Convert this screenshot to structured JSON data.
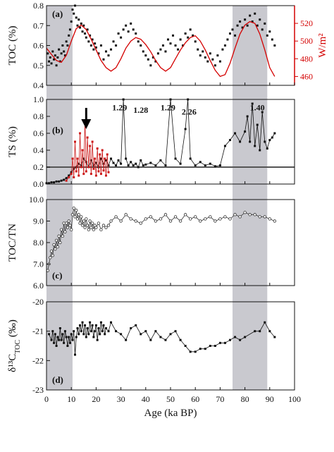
{
  "chart_data": {
    "type": "scatter",
    "x_axis": {
      "label": "Age (ka BP)",
      "range": [
        0,
        100
      ],
      "ticks": [
        "0",
        "10",
        "20",
        "30",
        "40",
        "50",
        "60",
        "70",
        "80",
        "90",
        "100"
      ]
    },
    "shaded_intervals": [
      [
        0,
        10.5
      ],
      [
        75,
        89
      ]
    ],
    "panels": [
      {
        "id": "a",
        "label": "(a)",
        "ylabel": "TOC (%)",
        "ylim": [
          0.4,
          0.8
        ],
        "yticks": [
          "0.4",
          "0.5",
          "0.6",
          "0.7",
          "0.8"
        ],
        "right_axis": {
          "label": "W/m²",
          "ylim": [
            450,
            540
          ],
          "ticks": [
            "460",
            "480",
            "500",
            "520"
          ],
          "color": "#d40000"
        },
        "series": [
          {
            "style": "points",
            "color": "#111111",
            "x": [
              0.5,
              1,
              1.5,
              2,
              2.5,
              3,
              3.5,
              4,
              4.5,
              5,
              5.5,
              6,
              6.5,
              7,
              7.5,
              8,
              8.5,
              9,
              9.5,
              10,
              10.5,
              11,
              11.5,
              12,
              12.5,
              13,
              13.5,
              14,
              14.5,
              15,
              15.5,
              16,
              16.5,
              17,
              17.5,
              18,
              18.5,
              19,
              19.5,
              20,
              21,
              22,
              23,
              24,
              25,
              26,
              27,
              28,
              29,
              30,
              31,
              32,
              33,
              34,
              35,
              36,
              37,
              38,
              39,
              40,
              41,
              42,
              43,
              44,
              45,
              46,
              47,
              48,
              49,
              50,
              51,
              52,
              53,
              54,
              55,
              56,
              57,
              58,
              59,
              60,
              61,
              62,
              63,
              64,
              65,
              66,
              67,
              68,
              69,
              70,
              71,
              72,
              73,
              74,
              75,
              76,
              77,
              78,
              79,
              80,
              81,
              82,
              83,
              84,
              85,
              86,
              87,
              88,
              89,
              90,
              91,
              92
            ],
            "y": [
              0.56,
              0.52,
              0.54,
              0.51,
              0.57,
              0.53,
              0.55,
              0.5,
              0.54,
              0.58,
              0.52,
              0.56,
              0.6,
              0.57,
              0.55,
              0.62,
              0.6,
              0.65,
              0.68,
              0.72,
              0.78,
              0.76,
              0.8,
              0.74,
              0.7,
              0.73,
              0.69,
              0.71,
              0.67,
              0.7,
              0.66,
              0.64,
              0.68,
              0.62,
              0.65,
              0.6,
              0.63,
              0.58,
              0.61,
              0.59,
              0.56,
              0.6,
              0.53,
              0.57,
              0.55,
              0.58,
              0.62,
              0.6,
              0.66,
              0.64,
              0.68,
              0.7,
              0.67,
              0.71,
              0.68,
              0.66,
              0.62,
              0.6,
              0.57,
              0.55,
              0.53,
              0.5,
              0.54,
              0.52,
              0.56,
              0.58,
              0.6,
              0.57,
              0.63,
              0.61,
              0.65,
              0.6,
              0.58,
              0.63,
              0.6,
              0.66,
              0.64,
              0.68,
              0.65,
              0.62,
              0.58,
              0.55,
              0.57,
              0.54,
              0.52,
              0.56,
              0.53,
              0.5,
              0.55,
              0.52,
              0.58,
              0.6,
              0.63,
              0.66,
              0.68,
              0.65,
              0.7,
              0.72,
              0.69,
              0.73,
              0.7,
              0.75,
              0.72,
              0.76,
              0.7,
              0.73,
              0.68,
              0.71,
              0.65,
              0.67,
              0.63,
              0.6
            ]
          },
          {
            "style": "line",
            "color": "#d40000",
            "axis": "right",
            "x": [
              0,
              2,
              4,
              6,
              8,
              10,
              12,
              14,
              16,
              18,
              20,
              22,
              24,
              26,
              28,
              30,
              32,
              34,
              36,
              38,
              40,
              42,
              44,
              46,
              48,
              50,
              52,
              54,
              56,
              58,
              60,
              62,
              64,
              66,
              68,
              70,
              72,
              74,
              76,
              78,
              80,
              82,
              84,
              86,
              88,
              90,
              92
            ],
            "y": [
              492,
              485,
              478,
              476,
              484,
              500,
              514,
              518,
              513,
              502,
              490,
              478,
              470,
              466,
              470,
              480,
              492,
              500,
              504,
              502,
              496,
              488,
              478,
              470,
              466,
              470,
              480,
              490,
              498,
              504,
              506,
              500,
              490,
              478,
              467,
              460,
              462,
              475,
              492,
              508,
              518,
              522,
              520,
              508,
              490,
              470,
              460
            ]
          }
        ]
      },
      {
        "id": "b",
        "label": "(b)",
        "ylabel": "TS (%)",
        "ylim": [
          0,
          1.0
        ],
        "yticks": [
          "0.0",
          "0.2",
          "0.4",
          "0.6",
          "0.8",
          "1.0"
        ],
        "reference_line": 0.2,
        "arrow_x": 16,
        "annotations": [
          {
            "text": "1.29",
            "x": 26.5,
            "y": 0.87
          },
          {
            "text": "1.28",
            "x": 35,
            "y": 0.84
          },
          {
            "text": "1.29",
            "x": 46,
            "y": 0.87
          },
          {
            "text": "2.26",
            "x": 54.5,
            "y": 0.82
          },
          {
            "text": "1.40",
            "x": 82,
            "y": 0.87
          }
        ],
        "series": [
          {
            "style": "line-points",
            "color": "#111111",
            "x": [
              0,
              1,
              2,
              3,
              4,
              5,
              6,
              7,
              8,
              9,
              10,
              11,
              12,
              13,
              14,
              15,
              16,
              17,
              18,
              19,
              20,
              21,
              22,
              23,
              24,
              25,
              26,
              27,
              28,
              29,
              30,
              31,
              32,
              33,
              34,
              35,
              36,
              37,
              38,
              39,
              40,
              42,
              44,
              46,
              48,
              50,
              52,
              54,
              56,
              57,
              58,
              60,
              62,
              64,
              66,
              68,
              70,
              72,
              74,
              76,
              78,
              80,
              81,
              82,
              83,
              84,
              85,
              86,
              87,
              88,
              89,
              90,
              91,
              92
            ],
            "y": [
              0.01,
              0.01,
              0.02,
              0.02,
              0.03,
              0.03,
              0.04,
              0.05,
              0.07,
              0.1,
              0.14,
              0.18,
              0.2,
              0.24,
              0.22,
              0.3,
              0.26,
              0.2,
              0.28,
              0.22,
              0.25,
              0.2,
              0.3,
              0.24,
              0.28,
              0.22,
              0.3,
              0.25,
              0.22,
              0.28,
              0.24,
              1.0,
              0.3,
              0.22,
              0.26,
              0.22,
              0.24,
              0.2,
              0.28,
              0.22,
              0.23,
              0.25,
              0.22,
              0.28,
              0.22,
              1.0,
              0.3,
              0.24,
              0.65,
              1.0,
              0.3,
              0.22,
              0.26,
              0.22,
              0.24,
              0.21,
              0.22,
              0.45,
              0.52,
              0.6,
              0.5,
              0.62,
              0.8,
              0.5,
              0.95,
              0.45,
              0.7,
              0.4,
              0.85,
              0.5,
              0.42,
              0.52,
              0.55,
              0.6
            ]
          },
          {
            "style": "line-points",
            "color": "#cc1a1a",
            "x": [
              8,
              9,
              10,
              10.5,
              11,
              11.5,
              12,
              12.5,
              13,
              13.5,
              14,
              14.5,
              15,
              15.5,
              16,
              16.5,
              17,
              17.5,
              18,
              18.5,
              19,
              19.5,
              20,
              20.5,
              21,
              21.5,
              22,
              22.5,
              23,
              23.5,
              24,
              24.5,
              25
            ],
            "y": [
              0.04,
              0.08,
              0.12,
              0.3,
              0.08,
              0.5,
              0.15,
              0.3,
              0.1,
              0.6,
              0.2,
              0.4,
              0.12,
              0.75,
              0.15,
              0.55,
              0.2,
              0.45,
              0.12,
              0.5,
              0.18,
              0.3,
              0.1,
              0.42,
              0.15,
              0.35,
              0.12,
              0.4,
              0.16,
              0.3,
              0.1,
              0.35,
              0.14
            ]
          }
        ]
      },
      {
        "id": "c",
        "label": "(c)",
        "ylabel": "TOC/TN",
        "ylim": [
          6.0,
          10.0
        ],
        "yticks": [
          "6.0",
          "7.0",
          "8.0",
          "9.0",
          "10.0"
        ],
        "series": [
          {
            "style": "line-points",
            "color": "#333333",
            "x": [
              0.5,
              1,
              1.5,
              2,
              2.5,
              3,
              3.5,
              4,
              4.5,
              5,
              5.5,
              6,
              6.5,
              7,
              7.5,
              8,
              8.5,
              9,
              9.5,
              10,
              10.5,
              11,
              11.5,
              12,
              12.5,
              13,
              13.5,
              14,
              14.5,
              15,
              15.5,
              16,
              16.5,
              17,
              17.5,
              18,
              18.5,
              19,
              19.5,
              20,
              21,
              22,
              23,
              24,
              25,
              26,
              28,
              30,
              32,
              34,
              36,
              38,
              40,
              42,
              44,
              46,
              48,
              50,
              52,
              54,
              56,
              58,
              60,
              62,
              64,
              66,
              68,
              70,
              72,
              74,
              76,
              78,
              80,
              82,
              84,
              86,
              88,
              90,
              92
            ],
            "y": [
              6.7,
              7.0,
              7.3,
              7.6,
              7.4,
              7.9,
              7.7,
              8.1,
              7.8,
              8.3,
              8.0,
              8.6,
              8.3,
              8.9,
              8.5,
              8.9,
              8.7,
              9.0,
              8.8,
              8.6,
              9.3,
              9.6,
              9.2,
              9.5,
              9.1,
              9.3,
              8.9,
              9.2,
              8.8,
              9.0,
              8.7,
              9.1,
              8.8,
              8.6,
              9.0,
              8.7,
              8.9,
              8.6,
              8.8,
              8.7,
              8.9,
              8.6,
              8.8,
              8.7,
              8.8,
              9.0,
              9.2,
              9.0,
              9.3,
              9.1,
              9.0,
              8.9,
              9.1,
              9.2,
              9.0,
              9.1,
              9.3,
              9.0,
              9.2,
              9.0,
              9.3,
              9.1,
              9.2,
              9.0,
              9.1,
              9.2,
              9.0,
              9.1,
              9.2,
              9.1,
              9.3,
              9.2,
              9.4,
              9.3,
              9.3,
              9.2,
              9.2,
              9.1,
              9.0
            ]
          }
        ]
      },
      {
        "id": "d",
        "label": "(d)",
        "ylabel": "δ¹³C",
        "ylabel_sub": "TOC",
        "ylabel_unit": " (‰)",
        "ylim": [
          -23,
          -20
        ],
        "yticks": [
          "-23",
          "-22",
          "-21",
          "-20"
        ],
        "series": [
          {
            "style": "line-points",
            "color": "#111111",
            "x": [
              1,
              2,
              2.5,
              3,
              3.5,
              4,
              4.5,
              5,
              5.5,
              6,
              6.5,
              7,
              7.5,
              8,
              8.5,
              9,
              9.5,
              10,
              10.5,
              11,
              11.5,
              12,
              12.5,
              13,
              13.5,
              14,
              14.5,
              15,
              15.5,
              16,
              16.5,
              17,
              17.5,
              18,
              18.5,
              19,
              19.5,
              20,
              20.5,
              21,
              21.5,
              22,
              22.5,
              23,
              23.5,
              24,
              25,
              26,
              28,
              30,
              32,
              34,
              36,
              38,
              40,
              42,
              44,
              46,
              48,
              50,
              52,
              54,
              56,
              58,
              60,
              62,
              64,
              66,
              68,
              70,
              72,
              74,
              76,
              78,
              80,
              84,
              86,
              88,
              90,
              92
            ],
            "y": [
              -21.1,
              -21.3,
              -21.0,
              -21.4,
              -21.1,
              -21.5,
              -21.2,
              -21.3,
              -20.9,
              -21.3,
              -21.1,
              -21.4,
              -21.0,
              -21.2,
              -21.5,
              -21.2,
              -21.4,
              -21.1,
              -21.3,
              -21.0,
              -21.8,
              -21.2,
              -20.9,
              -21.1,
              -20.8,
              -21.0,
              -20.7,
              -21.1,
              -20.8,
              -21.2,
              -20.9,
              -21.1,
              -20.7,
              -21.0,
              -20.8,
              -21.2,
              -21.0,
              -20.8,
              -21.3,
              -20.9,
              -21.1,
              -20.7,
              -21.0,
              -20.8,
              -21.1,
              -20.9,
              -21.0,
              -20.7,
              -21.0,
              -21.1,
              -21.3,
              -20.9,
              -20.8,
              -21.1,
              -21.0,
              -21.3,
              -21.0,
              -21.2,
              -21.3,
              -21.1,
              -21.0,
              -21.3,
              -21.5,
              -21.7,
              -21.7,
              -21.6,
              -21.6,
              -21.5,
              -21.5,
              -21.4,
              -21.4,
              -21.3,
              -21.2,
              -21.3,
              -21.2,
              -21.0,
              -21.0,
              -20.7,
              -21.0,
              -21.2
            ]
          }
        ]
      }
    ]
  }
}
